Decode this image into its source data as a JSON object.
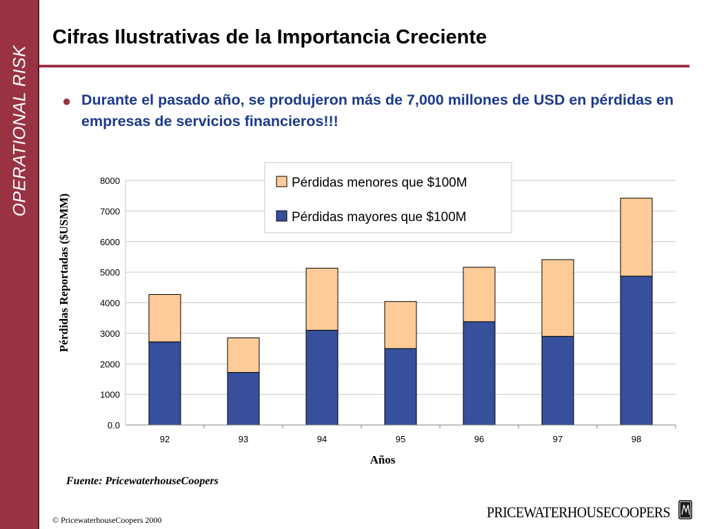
{
  "sidebar": {
    "label": "OPERATIONAL RISK"
  },
  "header": {
    "title": "Cifras Ilustrativas de la Importancia Creciente"
  },
  "bullet": {
    "text": "Durante el pasado año, se produjeron más de 7,000 millones de USD en pérdidas en empresas de servicios financieros!!!"
  },
  "chart_data": {
    "type": "bar",
    "stacked": true,
    "categories": [
      "92",
      "93",
      "94",
      "95",
      "96",
      "97",
      "98"
    ],
    "series": [
      {
        "name": "Pérdidas mayores que $100M",
        "color": "#36509c",
        "values": [
          2720,
          1720,
          3100,
          2500,
          3380,
          2900,
          4870
        ]
      },
      {
        "name": "Pérdidas menores que $100M",
        "color": "#fdcb97",
        "values": [
          1550,
          1130,
          2030,
          1540,
          1780,
          2510,
          2550
        ]
      }
    ],
    "xlabel": "Años",
    "ylabel": "Pérdidas Reportadas ($USMM)",
    "ylim": [
      0,
      8000
    ],
    "yticks": [
      "0.0",
      "1000",
      "2000",
      "3000",
      "4000",
      "5000",
      "6000",
      "7000",
      "8000"
    ],
    "grid": true,
    "legend_position": "top-right",
    "legend_order": [
      "Pérdidas menores que $100M",
      "Pérdidas mayores que $100M"
    ]
  },
  "footer": {
    "source": "Fuente: PricewaterhouseCoopers",
    "copyright": "© PricewaterhouseCoopers 2000",
    "logo_text": "PRICEWATERHOUSECOOPERS",
    "logo_mark": "PwC-seal-icon"
  }
}
